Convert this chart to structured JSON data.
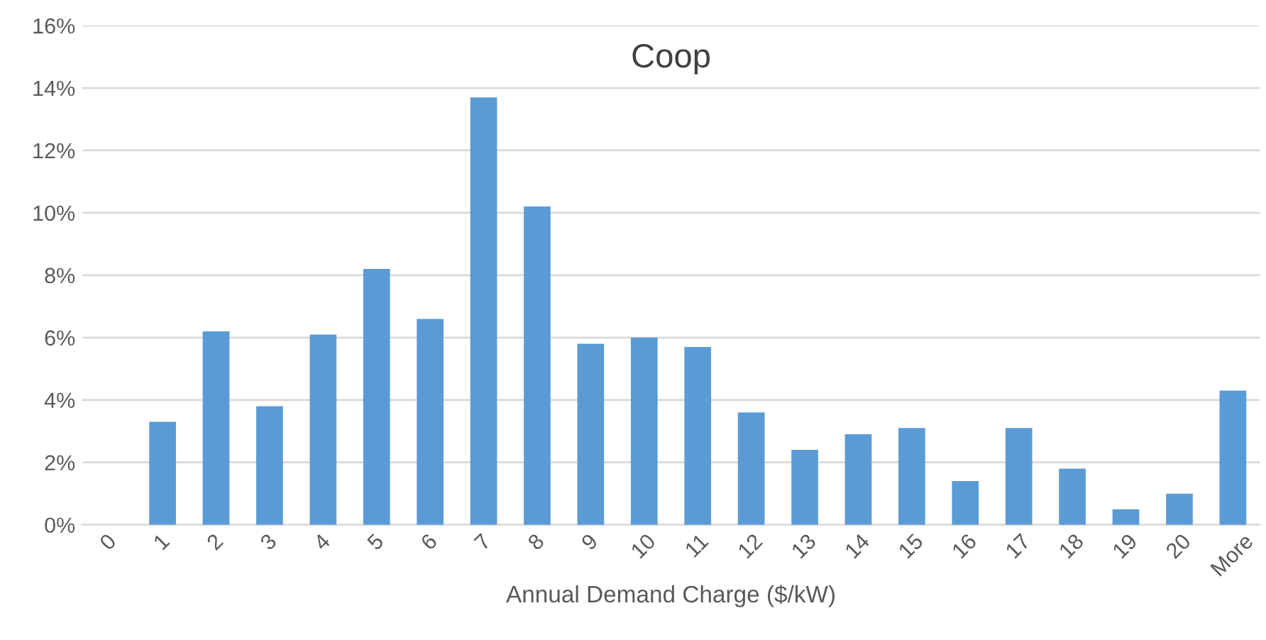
{
  "chart_data": {
    "type": "bar",
    "title": "Coop",
    "xlabel": "Annual Demand Charge ($/kW)",
    "categories": [
      "0",
      "1",
      "2",
      "3",
      "4",
      "5",
      "6",
      "7",
      "8",
      "9",
      "10",
      "11",
      "12",
      "13",
      "14",
      "15",
      "16",
      "17",
      "18",
      "19",
      "20",
      "More"
    ],
    "values": [
      0,
      3.3,
      6.2,
      3.8,
      6.1,
      8.2,
      6.6,
      13.7,
      10.2,
      5.8,
      6.0,
      5.7,
      3.6,
      2.4,
      2.9,
      3.1,
      1.4,
      3.1,
      1.8,
      0.5,
      1.0,
      4.3
    ],
    "color": "#5b9bd5",
    "ylim": [
      0,
      16
    ],
    "yticks": [
      {
        "value": 0,
        "label": "0%"
      },
      {
        "value": 2,
        "label": "2%"
      },
      {
        "value": 4,
        "label": "4%"
      },
      {
        "value": 6,
        "label": "6%"
      },
      {
        "value": 8,
        "label": "8%"
      },
      {
        "value": 10,
        "label": "10%"
      },
      {
        "value": 12,
        "label": "12%"
      },
      {
        "value": 14,
        "label": "14%"
      },
      {
        "value": 16,
        "label": "16%"
      }
    ],
    "grid": "y"
  }
}
